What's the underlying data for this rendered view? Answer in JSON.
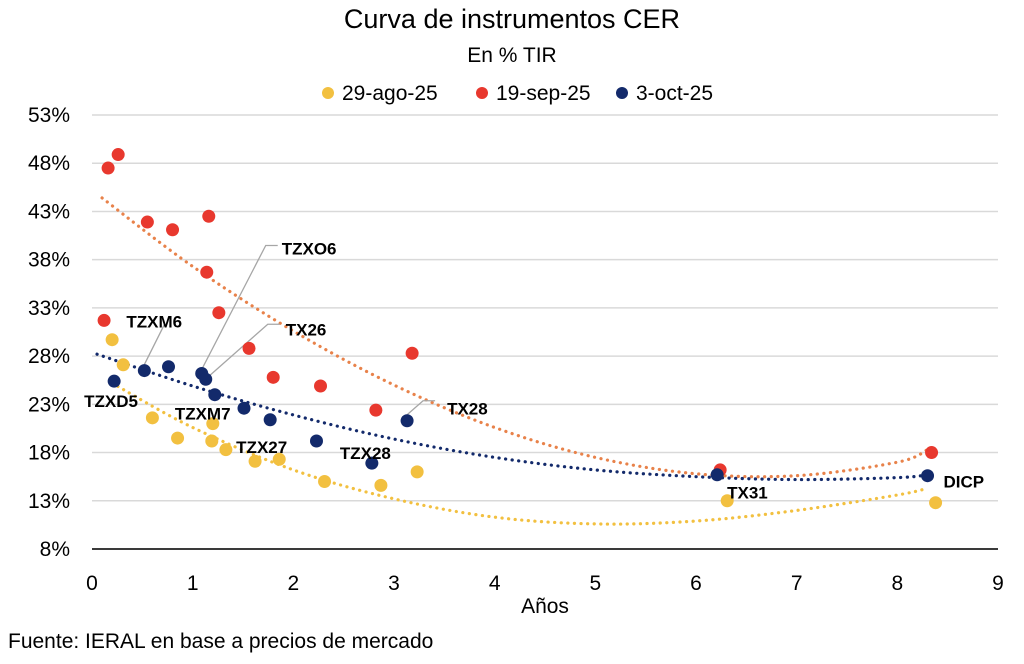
{
  "chart_data": {
    "type": "scatter",
    "title": "Curva de instrumentos CER",
    "subtitle": "En % TIR",
    "xlabel": "Años",
    "ylabel": "",
    "xlim": [
      0,
      9
    ],
    "ylim": [
      8,
      53
    ],
    "x_ticks": [
      0,
      1,
      2,
      3,
      4,
      5,
      6,
      7,
      8,
      9
    ],
    "y_ticks": [
      8,
      13,
      18,
      23,
      28,
      33,
      38,
      43,
      48,
      53
    ],
    "y_tick_labels": [
      "8%",
      "13%",
      "18%",
      "23%",
      "28%",
      "33%",
      "38%",
      "43%",
      "48%",
      "53%"
    ],
    "grid": "horizontal",
    "legend_position": "top-center",
    "source": "Fuente: IERAL en base a precios de mercado",
    "series": [
      {
        "name": "29-ago-25",
        "color": "#F2C040",
        "trend_color": "#F2C040",
        "trendline": "polynomial-2",
        "points": [
          {
            "x": 0.2,
            "y": 29.7
          },
          {
            "x": 0.31,
            "y": 27.1
          },
          {
            "x": 0.6,
            "y": 21.6
          },
          {
            "x": 0.85,
            "y": 19.5
          },
          {
            "x": 1.2,
            "y": 21.0
          },
          {
            "x": 1.19,
            "y": 19.2
          },
          {
            "x": 1.33,
            "y": 18.3
          },
          {
            "x": 1.62,
            "y": 17.1
          },
          {
            "x": 1.86,
            "y": 17.3
          },
          {
            "x": 2.31,
            "y": 15.0
          },
          {
            "x": 2.87,
            "y": 14.6
          },
          {
            "x": 3.23,
            "y": 16.0
          },
          {
            "x": 6.31,
            "y": 13.0
          },
          {
            "x": 8.38,
            "y": 12.8
          }
        ],
        "trend_curve": [
          [
            0.2,
            25.2
          ],
          [
            1,
            20.6
          ],
          [
            2,
            16.2
          ],
          [
            3,
            13.2
          ],
          [
            4,
            11.3
          ],
          [
            5,
            10.6
          ],
          [
            6,
            10.9
          ],
          [
            7,
            12.0
          ],
          [
            8,
            13.6
          ],
          [
            8.3,
            14.3
          ]
        ]
      },
      {
        "name": "19-sep-25",
        "color": "#E8382E",
        "trend_color": "#E8824A",
        "trendline": "polynomial-2",
        "points": [
          {
            "x": 0.16,
            "y": 47.5
          },
          {
            "x": 0.26,
            "y": 48.9
          },
          {
            "x": 0.12,
            "y": 31.7
          },
          {
            "x": 0.55,
            "y": 41.9
          },
          {
            "x": 0.8,
            "y": 41.1
          },
          {
            "x": 1.16,
            "y": 42.5
          },
          {
            "x": 1.14,
            "y": 36.7
          },
          {
            "x": 1.26,
            "y": 32.5
          },
          {
            "x": 1.56,
            "y": 28.8
          },
          {
            "x": 1.8,
            "y": 25.8
          },
          {
            "x": 2.27,
            "y": 24.9
          },
          {
            "x": 2.82,
            "y": 22.4
          },
          {
            "x": 3.18,
            "y": 28.3
          },
          {
            "x": 6.24,
            "y": 16.2
          },
          {
            "x": 8.34,
            "y": 18.0
          }
        ],
        "trend_curve": [
          [
            0.1,
            44.4
          ],
          [
            1,
            37.3
          ],
          [
            2,
            30.6
          ],
          [
            3,
            25.0
          ],
          [
            4,
            20.6
          ],
          [
            5,
            17.5
          ],
          [
            6,
            15.8
          ],
          [
            7,
            15.6
          ],
          [
            8,
            17.0
          ],
          [
            8.3,
            18.3
          ]
        ]
      },
      {
        "name": "3-oct-25",
        "color": "#132A6B",
        "trend_color": "#132A6B",
        "trendline": "polynomial-2",
        "points": [
          {
            "x": 0.22,
            "y": 25.4,
            "label": "TZXD5"
          },
          {
            "x": 0.52,
            "y": 26.5,
            "label": "TZXM6"
          },
          {
            "x": 0.76,
            "y": 26.9
          },
          {
            "x": 1.09,
            "y": 26.2,
            "label": "TZXO6"
          },
          {
            "x": 1.13,
            "y": 25.6,
            "label": "TX26"
          },
          {
            "x": 1.22,
            "y": 24.0,
            "label": "TZXM7"
          },
          {
            "x": 1.51,
            "y": 22.6
          },
          {
            "x": 1.77,
            "y": 21.4,
            "label": "TZX27"
          },
          {
            "x": 2.23,
            "y": 19.2
          },
          {
            "x": 2.78,
            "y": 16.9,
            "label": "TZX28"
          },
          {
            "x": 3.13,
            "y": 21.3,
            "label": "TX28"
          },
          {
            "x": 6.21,
            "y": 15.7,
            "label": "TX31"
          },
          {
            "x": 8.3,
            "y": 15.6,
            "label": "DICP"
          }
        ],
        "trend_curve": [
          [
            0.05,
            28.2
          ],
          [
            1,
            24.9
          ],
          [
            2,
            21.9
          ],
          [
            3,
            19.4
          ],
          [
            4,
            17.5
          ],
          [
            5,
            16.2
          ],
          [
            6,
            15.5
          ],
          [
            7,
            15.2
          ],
          [
            8,
            15.4
          ],
          [
            8.3,
            15.7
          ]
        ]
      }
    ],
    "annotations": [
      {
        "text": "TZXD5",
        "series": "3-oct-25",
        "x": 0.22,
        "y": 25.4
      },
      {
        "text": "TZXM6",
        "series": "3-oct-25",
        "x": 0.52,
        "y": 26.5
      },
      {
        "text": "TZXO6",
        "series": "3-oct-25",
        "x": 1.09,
        "y": 26.2
      },
      {
        "text": "TX26",
        "series": "3-oct-25",
        "x": 1.13,
        "y": 25.6
      },
      {
        "text": "TZXM7",
        "series": "3-oct-25",
        "x": 1.22,
        "y": 24.0
      },
      {
        "text": "TZX27",
        "series": "3-oct-25",
        "x": 1.77,
        "y": 21.4
      },
      {
        "text": "TZX28",
        "series": "3-oct-25",
        "x": 2.78,
        "y": 16.9
      },
      {
        "text": "TX28",
        "series": "3-oct-25",
        "x": 3.13,
        "y": 21.3
      },
      {
        "text": "TX31",
        "series": "3-oct-25",
        "x": 6.21,
        "y": 15.7
      },
      {
        "text": "DICP",
        "series": "3-oct-25",
        "x": 8.3,
        "y": 15.6
      }
    ]
  }
}
